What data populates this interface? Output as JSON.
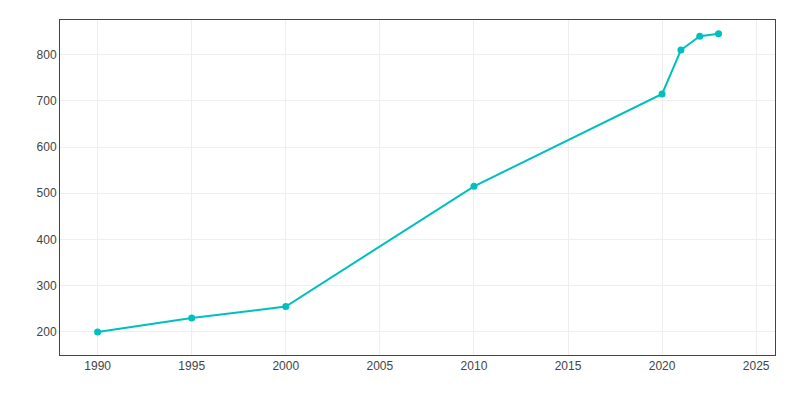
{
  "chart_data": {
    "type": "line",
    "x": [
      1990,
      1995,
      2000,
      2010,
      2020,
      2021,
      2022,
      2023
    ],
    "values": [
      200,
      230,
      255,
      515,
      715,
      810,
      840,
      845
    ],
    "color": "#00BFBF",
    "marker": "circle",
    "xlim": [
      1988,
      2026
    ],
    "ylim": [
      150,
      875
    ],
    "xticks": [
      1990,
      1995,
      2000,
      2005,
      2010,
      2015,
      2020,
      2025
    ],
    "yticks": [
      200,
      300,
      400,
      500,
      600,
      700,
      800
    ],
    "grid": true
  }
}
